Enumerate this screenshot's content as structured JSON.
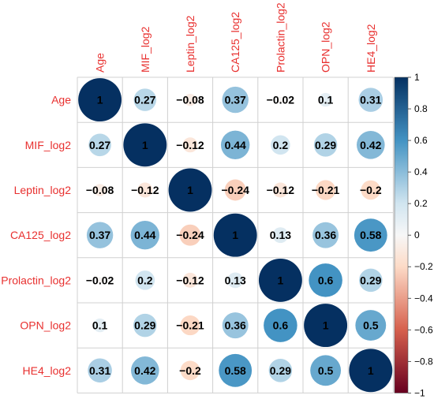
{
  "chart_data": {
    "type": "heatmap",
    "glyph": "circle",
    "variables": [
      "Age",
      "MIF_log2",
      "Leptin_log2",
      "CA125_log2",
      "Prolactin_log2",
      "OPN_log2",
      "HE4_log2"
    ],
    "matrix": [
      [
        1,
        0.27,
        -0.08,
        0.37,
        -0.02,
        0.1,
        0.31
      ],
      [
        0.27,
        1,
        -0.12,
        0.44,
        0.2,
        0.29,
        0.42
      ],
      [
        -0.08,
        -0.12,
        1,
        -0.24,
        -0.12,
        -0.21,
        -0.2
      ],
      [
        0.37,
        0.44,
        -0.24,
        1,
        0.13,
        0.36,
        0.58
      ],
      [
        -0.02,
        0.2,
        -0.12,
        0.13,
        1,
        0.6,
        0.29
      ],
      [
        0.1,
        0.29,
        -0.21,
        0.36,
        0.6,
        1,
        0.5
      ],
      [
        0.31,
        0.42,
        -0.2,
        0.58,
        0.29,
        0.5,
        1
      ]
    ],
    "labels": [
      [
        "1",
        "0.27",
        "−0.08",
        "0.37",
        "−0.02",
        "0.1",
        "0.31"
      ],
      [
        "0.27",
        "1",
        "−0.12",
        "0.44",
        "0.2",
        "0.29",
        "0.42"
      ],
      [
        "−0.08",
        "−0.12",
        "1",
        "−0.24",
        "−0.12",
        "−0.21",
        "−0.2"
      ],
      [
        "0.37",
        "0.44",
        "−0.24",
        "1",
        "0.13",
        "0.36",
        "0.58"
      ],
      [
        "−0.02",
        "0.2",
        "−0.12",
        "0.13",
        "1",
        "0.6",
        "0.29"
      ],
      [
        "0.1",
        "0.29",
        "−0.21",
        "0.36",
        "0.6",
        "1",
        "0.5"
      ],
      [
        "0.31",
        "0.42",
        "−0.2",
        "0.58",
        "0.29",
        "0.5",
        "1"
      ]
    ],
    "colorbar": {
      "range": [
        -1,
        1
      ],
      "ticks": [
        "1",
        "0.8",
        "0.6",
        "0.4",
        "0.2",
        "0",
        "−0.2",
        "−0.4",
        "−0.6",
        "−0.8",
        "−1"
      ],
      "colors": {
        "neg_strong": "#67001f",
        "neg_mid": "#d6604d",
        "neg_light": "#fddbc7",
        "zero": "#f7f7f7",
        "pos_light": "#d1e5f0",
        "pos_mid": "#4393c3",
        "pos_strong": "#053061"
      }
    },
    "label_color": "#e8302f",
    "value_label_color": "#000000"
  }
}
